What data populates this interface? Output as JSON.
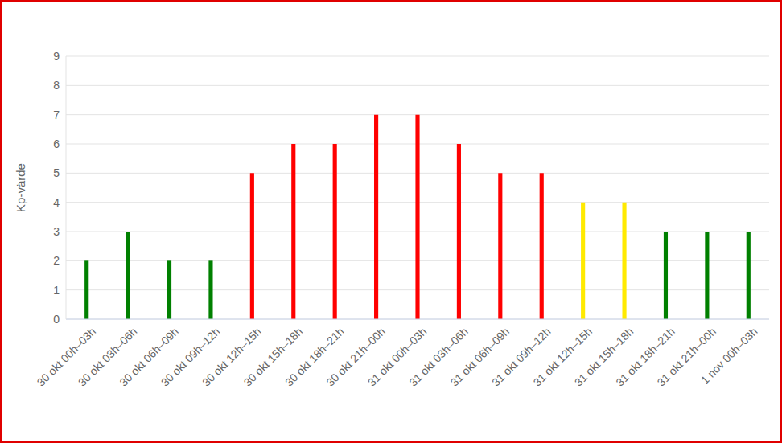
{
  "chart_data": {
    "type": "bar",
    "y_label": "Kp-värde",
    "categories": [
      "30 okt 00h–03h",
      "30 okt 03h–06h",
      "30 okt 06h–09h",
      "30 okt 09h–12h",
      "30 okt 12h–15h",
      "30 okt 15h–18h",
      "30 okt 18h–21h",
      "30 okt 21h–00h",
      "31 okt 00h–03h",
      "31 okt 03h–06h",
      "31 okt 06h–09h",
      "31 okt 09h–12h",
      "31 okt 12h–15h",
      "31 okt 15h–18h",
      "31 okt 18h–21h",
      "31 okt 21h–00h",
      "1 nov 00h–03h"
    ],
    "values": [
      2,
      3,
      2,
      2,
      5,
      6,
      6,
      7,
      7,
      6,
      5,
      5,
      4,
      4,
      3,
      3,
      3
    ],
    "colors": [
      "#008000",
      "#008000",
      "#008000",
      "#008000",
      "#ff0000",
      "#ff0000",
      "#ff0000",
      "#ff0000",
      "#ff0000",
      "#ff0000",
      "#ff0000",
      "#ff0000",
      "#ffea00",
      "#ffea00",
      "#008000",
      "#008000",
      "#008000"
    ],
    "ylim": [
      0,
      9
    ],
    "yticks": [
      0,
      1,
      2,
      3,
      4,
      5,
      6,
      7,
      8,
      9
    ],
    "grid": true
  }
}
